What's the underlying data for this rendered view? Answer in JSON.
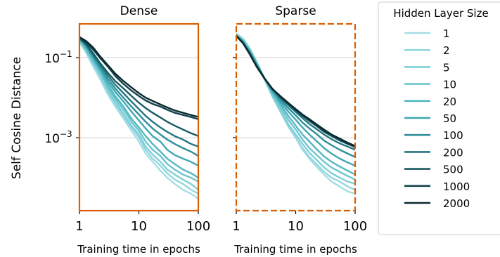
{
  "chart_data": [
    {
      "type": "line",
      "title": "Dense",
      "xlabel": "Training time in epochs",
      "ylabel": "Self Cosine Distance",
      "xscale": "log",
      "yscale": "log",
      "xlim": [
        1,
        100
      ],
      "ylim": [
        1.5e-05,
        0.7
      ],
      "xticks": [
        {
          "value": 1,
          "label": "1"
        },
        {
          "value": 10,
          "label": "10"
        },
        {
          "value": 100,
          "label": "100"
        }
      ],
      "yticks": [
        {
          "value": 0.1,
          "label": "10",
          "exp": "−1"
        },
        {
          "value": 0.001,
          "label": "10",
          "exp": "−3"
        }
      ],
      "grid": "horizontal",
      "frame": {
        "color": "#d95f02",
        "style": "solid"
      },
      "x": [
        1,
        1.3,
        1.7,
        2.2,
        3,
        4,
        5.5,
        7.5,
        10,
        13,
        17,
        23,
        30,
        40,
        55,
        75,
        100
      ],
      "series": [
        {
          "name": "1",
          "color": "#a6dde6",
          "values": [
            0.25,
            0.13,
            0.06,
            0.03,
            0.012,
            0.006,
            0.003,
            0.0015,
            0.0008,
            0.0004,
            0.00025,
            0.00015,
            0.0001,
            7e-05,
            5e-05,
            4e-05,
            3e-05
          ]
        },
        {
          "name": "2",
          "color": "#93d6df",
          "values": [
            0.26,
            0.14,
            0.07,
            0.035,
            0.014,
            0.007,
            0.0035,
            0.0018,
            0.001,
            0.0005,
            0.0003,
            0.0002,
            0.00013,
            9e-05,
            7e-05,
            5e-05,
            4e-05
          ]
        },
        {
          "name": "5",
          "color": "#7fcfd7",
          "values": [
            0.27,
            0.15,
            0.075,
            0.04,
            0.016,
            0.008,
            0.004,
            0.002,
            0.0012,
            0.0006,
            0.00038,
            0.00025,
            0.00016,
            0.00012,
            9e-05,
            7e-05,
            5e-05
          ]
        },
        {
          "name": "10",
          "color": "#6bc6cf",
          "values": [
            0.28,
            0.16,
            0.08,
            0.045,
            0.018,
            0.0095,
            0.005,
            0.0025,
            0.0015,
            0.0008,
            0.0005,
            0.00035,
            0.00022,
            0.00016,
            0.00012,
            0.0001,
            8e-05
          ]
        },
        {
          "name": "20",
          "color": "#55b7c1",
          "values": [
            0.29,
            0.17,
            0.09,
            0.05,
            0.021,
            0.011,
            0.006,
            0.003,
            0.0018,
            0.0011,
            0.0007,
            0.00045,
            0.0003,
            0.00022,
            0.00016,
            0.00013,
            0.0001
          ]
        },
        {
          "name": "50",
          "color": "#3fa7b2",
          "values": [
            0.3,
            0.19,
            0.1,
            0.055,
            0.025,
            0.014,
            0.008,
            0.0045,
            0.0027,
            0.0017,
            0.0011,
            0.0008,
            0.0005,
            0.00037,
            0.0003,
            0.00025,
            0.0002
          ]
        },
        {
          "name": "100",
          "color": "#2e8e99",
          "values": [
            0.3,
            0.2,
            0.11,
            0.06,
            0.03,
            0.017,
            0.01,
            0.006,
            0.0038,
            0.0025,
            0.0017,
            0.0012,
            0.0009,
            0.0007,
            0.00055,
            0.00045,
            0.00035
          ]
        },
        {
          "name": "200",
          "color": "#237580",
          "values": [
            0.31,
            0.21,
            0.12,
            0.07,
            0.036,
            0.021,
            0.013,
            0.008,
            0.0052,
            0.0035,
            0.0025,
            0.0018,
            0.0014,
            0.0011,
            0.0009,
            0.0007,
            0.0006
          ]
        },
        {
          "name": "500",
          "color": "#1a5a63",
          "values": [
            0.31,
            0.22,
            0.13,
            0.075,
            0.042,
            0.026,
            0.017,
            0.011,
            0.0075,
            0.0055,
            0.0042,
            0.0032,
            0.0025,
            0.002,
            0.0016,
            0.0013,
            0.0011
          ]
        },
        {
          "name": "1000",
          "color": "#11414a",
          "values": [
            0.32,
            0.24,
            0.16,
            0.1,
            0.06,
            0.035,
            0.022,
            0.015,
            0.011,
            0.0085,
            0.007,
            0.006,
            0.005,
            0.0042,
            0.0037,
            0.0033,
            0.0029
          ]
        },
        {
          "name": "2000",
          "color": "#0a2a30",
          "values": [
            0.33,
            0.26,
            0.18,
            0.11,
            0.065,
            0.04,
            0.026,
            0.018,
            0.013,
            0.01,
            0.0083,
            0.0068,
            0.0057,
            0.0048,
            0.0042,
            0.0037,
            0.0033
          ]
        }
      ]
    },
    {
      "type": "line",
      "title": "Sparse",
      "xlabel": "Training time in epochs",
      "xscale": "log",
      "yscale": "log",
      "xlim": [
        1,
        100
      ],
      "ylim": [
        1.5e-05,
        0.7
      ],
      "xticks": [
        {
          "value": 1,
          "label": "1"
        },
        {
          "value": 10,
          "label": "10"
        },
        {
          "value": 100,
          "label": "100"
        }
      ],
      "grid": "horizontal",
      "frame": {
        "color": "#d95f02",
        "style": "dashed"
      },
      "x": [
        1,
        1.3,
        1.7,
        2.2,
        3,
        4,
        5.5,
        7.5,
        10,
        13,
        17,
        23,
        30,
        40,
        55,
        75,
        100
      ],
      "series": [
        {
          "name": "1",
          "color": "#a6dde6",
          "values": [
            0.4,
            0.3,
            0.17,
            0.08,
            0.03,
            0.012,
            0.005,
            0.002,
            0.001,
            0.0005,
            0.0003,
            0.00018,
            0.00012,
            8e-05,
            6e-05,
            4.5e-05,
            4e-05
          ]
        },
        {
          "name": "2",
          "color": "#93d6df",
          "values": [
            0.39,
            0.29,
            0.16,
            0.075,
            0.028,
            0.011,
            0.0045,
            0.0019,
            0.001,
            0.00055,
            0.00033,
            0.00021,
            0.00014,
            0.0001,
            8e-05,
            6e-05,
            5e-05
          ]
        },
        {
          "name": "5",
          "color": "#7fcfd7",
          "values": [
            0.38,
            0.28,
            0.16,
            0.078,
            0.03,
            0.012,
            0.005,
            0.0022,
            0.0012,
            0.0007,
            0.00042,
            0.00027,
            0.00018,
            0.00013,
            0.0001,
            8e-05,
            7e-05
          ]
        },
        {
          "name": "10",
          "color": "#6bc6cf",
          "values": [
            0.38,
            0.27,
            0.15,
            0.075,
            0.03,
            0.013,
            0.006,
            0.0028,
            0.0016,
            0.0009,
            0.00055,
            0.00036,
            0.00025,
            0.00018,
            0.00014,
            0.00011,
            9e-05
          ]
        },
        {
          "name": "20",
          "color": "#55b7c1",
          "values": [
            0.37,
            0.26,
            0.14,
            0.07,
            0.03,
            0.014,
            0.007,
            0.0035,
            0.002,
            0.0012,
            0.0008,
            0.0005,
            0.00034,
            0.00025,
            0.00019,
            0.00015,
            0.00012
          ]
        },
        {
          "name": "50",
          "color": "#3fa7b2",
          "values": [
            0.36,
            0.25,
            0.14,
            0.068,
            0.03,
            0.015,
            0.008,
            0.0045,
            0.0028,
            0.0018,
            0.0012,
            0.0008,
            0.00055,
            0.0004,
            0.0003,
            0.00024,
            0.0002
          ]
        },
        {
          "name": "100",
          "color": "#2e8e99",
          "values": [
            0.36,
            0.24,
            0.13,
            0.065,
            0.03,
            0.016,
            0.009,
            0.0055,
            0.0036,
            0.0024,
            0.0017,
            0.0012,
            0.00085,
            0.00065,
            0.0005,
            0.0004,
            0.00033
          ]
        },
        {
          "name": "200",
          "color": "#237580",
          "values": [
            0.35,
            0.24,
            0.13,
            0.063,
            0.03,
            0.017,
            0.01,
            0.0065,
            0.0044,
            0.0031,
            0.0022,
            0.0016,
            0.0012,
            0.00092,
            0.00072,
            0.0006,
            0.0005
          ]
        },
        {
          "name": "500",
          "color": "#1a5a63",
          "values": [
            0.35,
            0.23,
            0.12,
            0.06,
            0.03,
            0.017,
            0.0105,
            0.007,
            0.0048,
            0.0035,
            0.0026,
            0.0019,
            0.0014,
            0.0011,
            0.00085,
            0.0007,
            0.00058
          ]
        },
        {
          "name": "1000",
          "color": "#11414a",
          "values": [
            0.35,
            0.23,
            0.12,
            0.06,
            0.03,
            0.017,
            0.0105,
            0.007,
            0.005,
            0.0037,
            0.0028,
            0.002,
            0.0015,
            0.0012,
            0.0009,
            0.0007,
            0.0006
          ]
        },
        {
          "name": "2000",
          "color": "#0a2a30",
          "values": [
            0.35,
            0.23,
            0.12,
            0.06,
            0.03,
            0.017,
            0.011,
            0.0074,
            0.0052,
            0.0038,
            0.0029,
            0.0021,
            0.0016,
            0.0012,
            0.00095,
            0.00075,
            0.00062
          ]
        }
      ]
    }
  ],
  "legend": {
    "title": "Hidden Layer Size",
    "placement": "right",
    "entries": [
      "1",
      "2",
      "5",
      "10",
      "20",
      "50",
      "100",
      "200",
      "500",
      "1000",
      "2000"
    ]
  }
}
